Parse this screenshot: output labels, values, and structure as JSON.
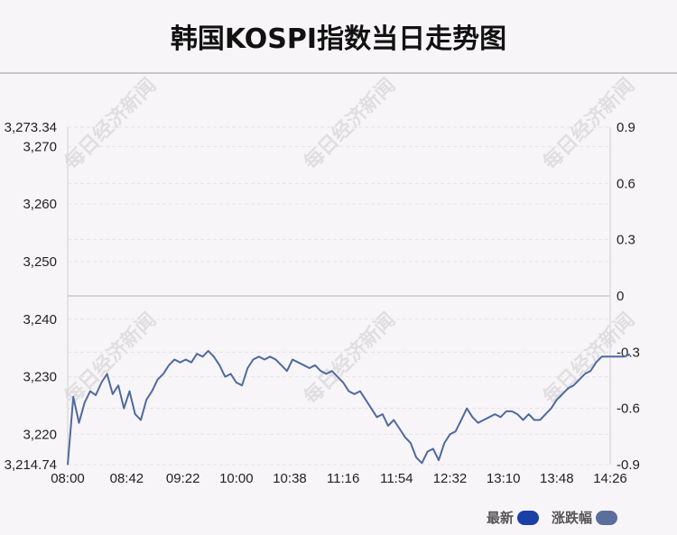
{
  "title": "韩国KOSPI指数当日走势图",
  "watermark": "每日经济新闻",
  "legend": {
    "latest_label": "最新",
    "latest_color": "#1a3fa6",
    "change_label": "涨跌幅",
    "change_color": "#5a6f9c"
  },
  "chart_data": {
    "type": "line",
    "title": "韩国KOSPI指数当日走势图",
    "x_ticks": [
      "08:00",
      "08:42",
      "09:22",
      "10:00",
      "10:38",
      "11:16",
      "11:54",
      "12:32",
      "13:10",
      "13:48",
      "14:26"
    ],
    "y_left": {
      "min": 3214.74,
      "max": 3273.34,
      "ticks": [
        3220,
        3230,
        3240,
        3250,
        3260,
        3270
      ],
      "max_label": "3,273.34",
      "min_label": "3,214.74"
    },
    "y_right": {
      "min": -0.9,
      "max": 0.9,
      "ticks": [
        "0.9",
        "0.6",
        "0.3",
        "0",
        "-0.3",
        "-0.6",
        "-0.9"
      ]
    },
    "grid": true,
    "line_color": "#4f6a9e",
    "series": [
      {
        "x": [
          "08:00",
          "08:04",
          "08:08",
          "08:12",
          "08:16",
          "08:20",
          "08:24",
          "08:28",
          "08:32",
          "08:36",
          "08:40",
          "08:44",
          "08:48",
          "08:52",
          "08:56",
          "09:00",
          "09:04",
          "09:08",
          "09:12",
          "09:16",
          "09:20",
          "09:24",
          "09:28",
          "09:32",
          "09:36",
          "09:40",
          "09:44",
          "09:48",
          "09:52",
          "09:56",
          "10:00",
          "10:04",
          "10:08",
          "10:12",
          "10:16",
          "10:20",
          "10:24",
          "10:28",
          "10:32",
          "10:36",
          "10:40",
          "10:44",
          "10:48",
          "10:52",
          "10:56",
          "11:00",
          "11:04",
          "11:08",
          "11:12",
          "11:16",
          "11:20",
          "11:24",
          "11:28",
          "11:32",
          "11:36",
          "11:40",
          "11:44",
          "11:48",
          "11:52",
          "11:56",
          "12:00",
          "12:04",
          "12:08",
          "12:12",
          "12:16",
          "12:20",
          "12:24",
          "12:28",
          "12:32",
          "12:36",
          "12:40",
          "12:44",
          "12:48",
          "12:52",
          "12:56",
          "13:00",
          "13:04",
          "13:08",
          "13:12",
          "13:16",
          "13:20",
          "13:24",
          "13:28",
          "13:32",
          "13:36",
          "13:40",
          "13:44",
          "13:48",
          "13:52",
          "13:56",
          "14:00",
          "14:04",
          "14:08",
          "14:12",
          "14:16",
          "14:20",
          "14:24",
          "14:28",
          "14:32",
          "14:36",
          "14:40"
        ],
        "y": [
          3214.7,
          3226.5,
          3222.0,
          3225.5,
          3227.5,
          3226.8,
          3229.0,
          3230.5,
          3227.0,
          3228.5,
          3224.5,
          3227.5,
          3223.5,
          3222.5,
          3226.0,
          3227.5,
          3229.5,
          3230.5,
          3232.0,
          3233.0,
          3232.5,
          3233.0,
          3232.5,
          3234.0,
          3233.5,
          3234.5,
          3233.5,
          3232.0,
          3230.0,
          3230.5,
          3229.0,
          3228.5,
          3231.5,
          3233.0,
          3233.5,
          3233.0,
          3233.5,
          3233.0,
          3232.0,
          3231.0,
          3233.0,
          3232.5,
          3232.0,
          3231.5,
          3232.0,
          3231.0,
          3230.5,
          3231.0,
          3230.0,
          3229.0,
          3227.5,
          3227.0,
          3227.5,
          3226.0,
          3224.5,
          3223.0,
          3223.5,
          3221.5,
          3222.5,
          3221.0,
          3219.5,
          3218.5,
          3216.0,
          3215.0,
          3217.0,
          3217.5,
          3215.5,
          3218.5,
          3220.0,
          3220.5,
          3222.5,
          3224.5,
          3223.0,
          3222.0,
          3222.5,
          3223.0,
          3223.5,
          3223.0,
          3224.0,
          3224.0,
          3223.5,
          3222.5,
          3223.5,
          3222.5,
          3222.5,
          3223.5,
          3224.5,
          3226.0,
          3227.0,
          3228.0,
          3228.5,
          3229.5,
          3230.5,
          3231.0,
          3232.5,
          3233.5,
          3233.5,
          3233.5,
          3233.5,
          3233.5,
          3233.9
        ]
      }
    ]
  }
}
